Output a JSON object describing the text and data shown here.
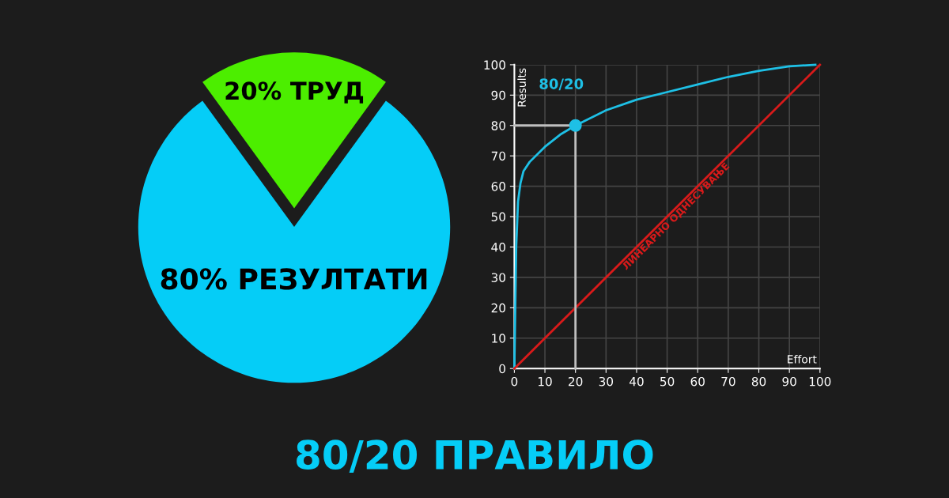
{
  "chart_data": [
    {
      "type": "pie",
      "title": "80/20 ПРАВИЛО",
      "categories": [
        "ТРУД",
        "РЕЗУЛТАТИ"
      ],
      "values": [
        20,
        80
      ],
      "value_labels": [
        "20%",
        "80%"
      ],
      "colors": [
        "#4cee00",
        "#05cdf7"
      ],
      "legend": false
    },
    {
      "type": "line",
      "xlabel": "Effort",
      "ylabel": "Results",
      "xlim": [
        0,
        100
      ],
      "ylim": [
        0,
        100
      ],
      "xticks": [
        0,
        10,
        20,
        30,
        40,
        50,
        60,
        70,
        80,
        90,
        100
      ],
      "yticks": [
        0,
        10,
        20,
        30,
        40,
        50,
        60,
        70,
        80,
        90,
        100
      ],
      "grid": true,
      "legend": false,
      "series": [
        {
          "name": "80/20",
          "color": "#1ec0e6",
          "x": [
            0,
            0.3,
            0.6,
            1.2,
            2,
            2.5,
            3,
            5,
            10,
            15,
            20,
            30,
            40,
            50,
            60,
            70,
            80,
            90,
            98.5
          ],
          "values": [
            0,
            20,
            40,
            55,
            61,
            63,
            65,
            68,
            73,
            77,
            80,
            85,
            88.5,
            91,
            93.5,
            96,
            98,
            99.5,
            100
          ]
        },
        {
          "name": "ЛИНЕАРНО ОДНЕСУВАЊЕ",
          "color": "#d91a1a",
          "x": [
            0,
            100
          ],
          "values": [
            0,
            100
          ]
        },
        {
          "type": "line",
          "color": "#bfbfbf",
          "x": [
            0,
            20,
            20
          ],
          "values": [
            80,
            80,
            0
          ]
        },
        {
          "type": "scatter",
          "color": "#1ec0e6",
          "marker": "circle",
          "x": [
            20
          ],
          "values": [
            80
          ]
        }
      ]
    }
  ]
}
